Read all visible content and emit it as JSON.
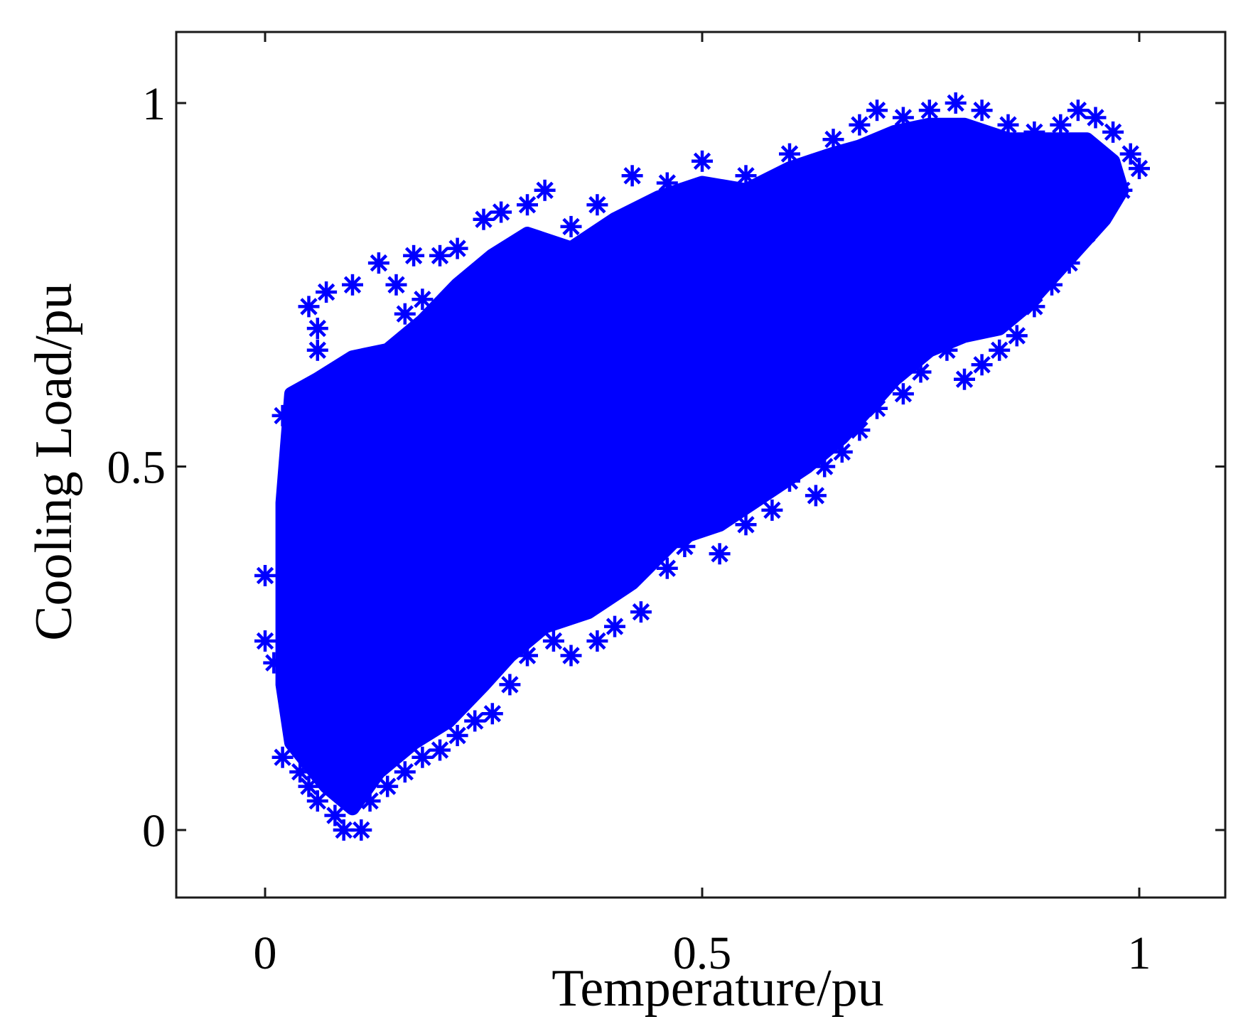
{
  "chart_data": {
    "type": "scatter",
    "title": "",
    "xlabel": "Temperature/pu",
    "ylabel": "Cooling Load/pu",
    "xlim": [
      -0.1,
      1.1
    ],
    "ylim": [
      -0.1,
      1.1
    ],
    "xticks": [
      0,
      0.5,
      1
    ],
    "yticks": [
      0,
      0.5,
      1
    ],
    "xtick_labels": [
      "0",
      "0.5",
      "1"
    ],
    "ytick_labels": [
      "0",
      "0.5",
      "1"
    ],
    "grid": false,
    "legend": "none",
    "marker": "asterisk",
    "color": "#0000ff",
    "points": [
      [
        0.0,
        0.35
      ],
      [
        0.0,
        0.26
      ],
      [
        0.01,
        0.23
      ],
      [
        0.02,
        0.1
      ],
      [
        0.02,
        0.57
      ],
      [
        0.03,
        0.45
      ],
      [
        0.03,
        0.3
      ],
      [
        0.05,
        0.72
      ],
      [
        0.06,
        0.69
      ],
      [
        0.06,
        0.66
      ],
      [
        0.07,
        0.74
      ],
      [
        0.1,
        0.75
      ],
      [
        0.13,
        0.78
      ],
      [
        0.15,
        0.75
      ],
      [
        0.16,
        0.71
      ],
      [
        0.17,
        0.79
      ],
      [
        0.18,
        0.73
      ],
      [
        0.2,
        0.79
      ],
      [
        0.22,
        0.8
      ],
      [
        0.25,
        0.84
      ],
      [
        0.27,
        0.85
      ],
      [
        0.3,
        0.86
      ],
      [
        0.32,
        0.88
      ],
      [
        0.35,
        0.83
      ],
      [
        0.38,
        0.86
      ],
      [
        0.42,
        0.9
      ],
      [
        0.46,
        0.89
      ],
      [
        0.5,
        0.92
      ],
      [
        0.55,
        0.9
      ],
      [
        0.6,
        0.93
      ],
      [
        0.65,
        0.95
      ],
      [
        0.68,
        0.97
      ],
      [
        0.7,
        0.99
      ],
      [
        0.73,
        0.98
      ],
      [
        0.76,
        0.99
      ],
      [
        0.79,
        1.0
      ],
      [
        0.82,
        0.99
      ],
      [
        0.85,
        0.97
      ],
      [
        0.88,
        0.96
      ],
      [
        0.91,
        0.97
      ],
      [
        0.93,
        0.99
      ],
      [
        0.95,
        0.98
      ],
      [
        0.97,
        0.96
      ],
      [
        0.99,
        0.93
      ],
      [
        1.0,
        0.91
      ],
      [
        0.98,
        0.88
      ],
      [
        0.96,
        0.85
      ],
      [
        0.94,
        0.82
      ],
      [
        0.92,
        0.78
      ],
      [
        0.9,
        0.75
      ],
      [
        0.88,
        0.72
      ],
      [
        0.86,
        0.68
      ],
      [
        0.84,
        0.66
      ],
      [
        0.82,
        0.64
      ],
      [
        0.8,
        0.62
      ],
      [
        0.78,
        0.66
      ],
      [
        0.75,
        0.63
      ],
      [
        0.73,
        0.6
      ],
      [
        0.7,
        0.58
      ],
      [
        0.68,
        0.55
      ],
      [
        0.66,
        0.52
      ],
      [
        0.64,
        0.5
      ],
      [
        0.63,
        0.46
      ],
      [
        0.6,
        0.48
      ],
      [
        0.58,
        0.44
      ],
      [
        0.55,
        0.42
      ],
      [
        0.52,
        0.38
      ],
      [
        0.48,
        0.39
      ],
      [
        0.46,
        0.36
      ],
      [
        0.43,
        0.3
      ],
      [
        0.4,
        0.28
      ],
      [
        0.38,
        0.26
      ],
      [
        0.35,
        0.24
      ],
      [
        0.33,
        0.26
      ],
      [
        0.3,
        0.24
      ],
      [
        0.28,
        0.2
      ],
      [
        0.26,
        0.16
      ],
      [
        0.24,
        0.15
      ],
      [
        0.22,
        0.13
      ],
      [
        0.2,
        0.11
      ],
      [
        0.18,
        0.1
      ],
      [
        0.16,
        0.08
      ],
      [
        0.14,
        0.06
      ],
      [
        0.12,
        0.04
      ],
      [
        0.11,
        0.0
      ],
      [
        0.09,
        0.0
      ],
      [
        0.08,
        0.02
      ],
      [
        0.06,
        0.04
      ],
      [
        0.05,
        0.06
      ],
      [
        0.04,
        0.08
      ]
    ]
  }
}
